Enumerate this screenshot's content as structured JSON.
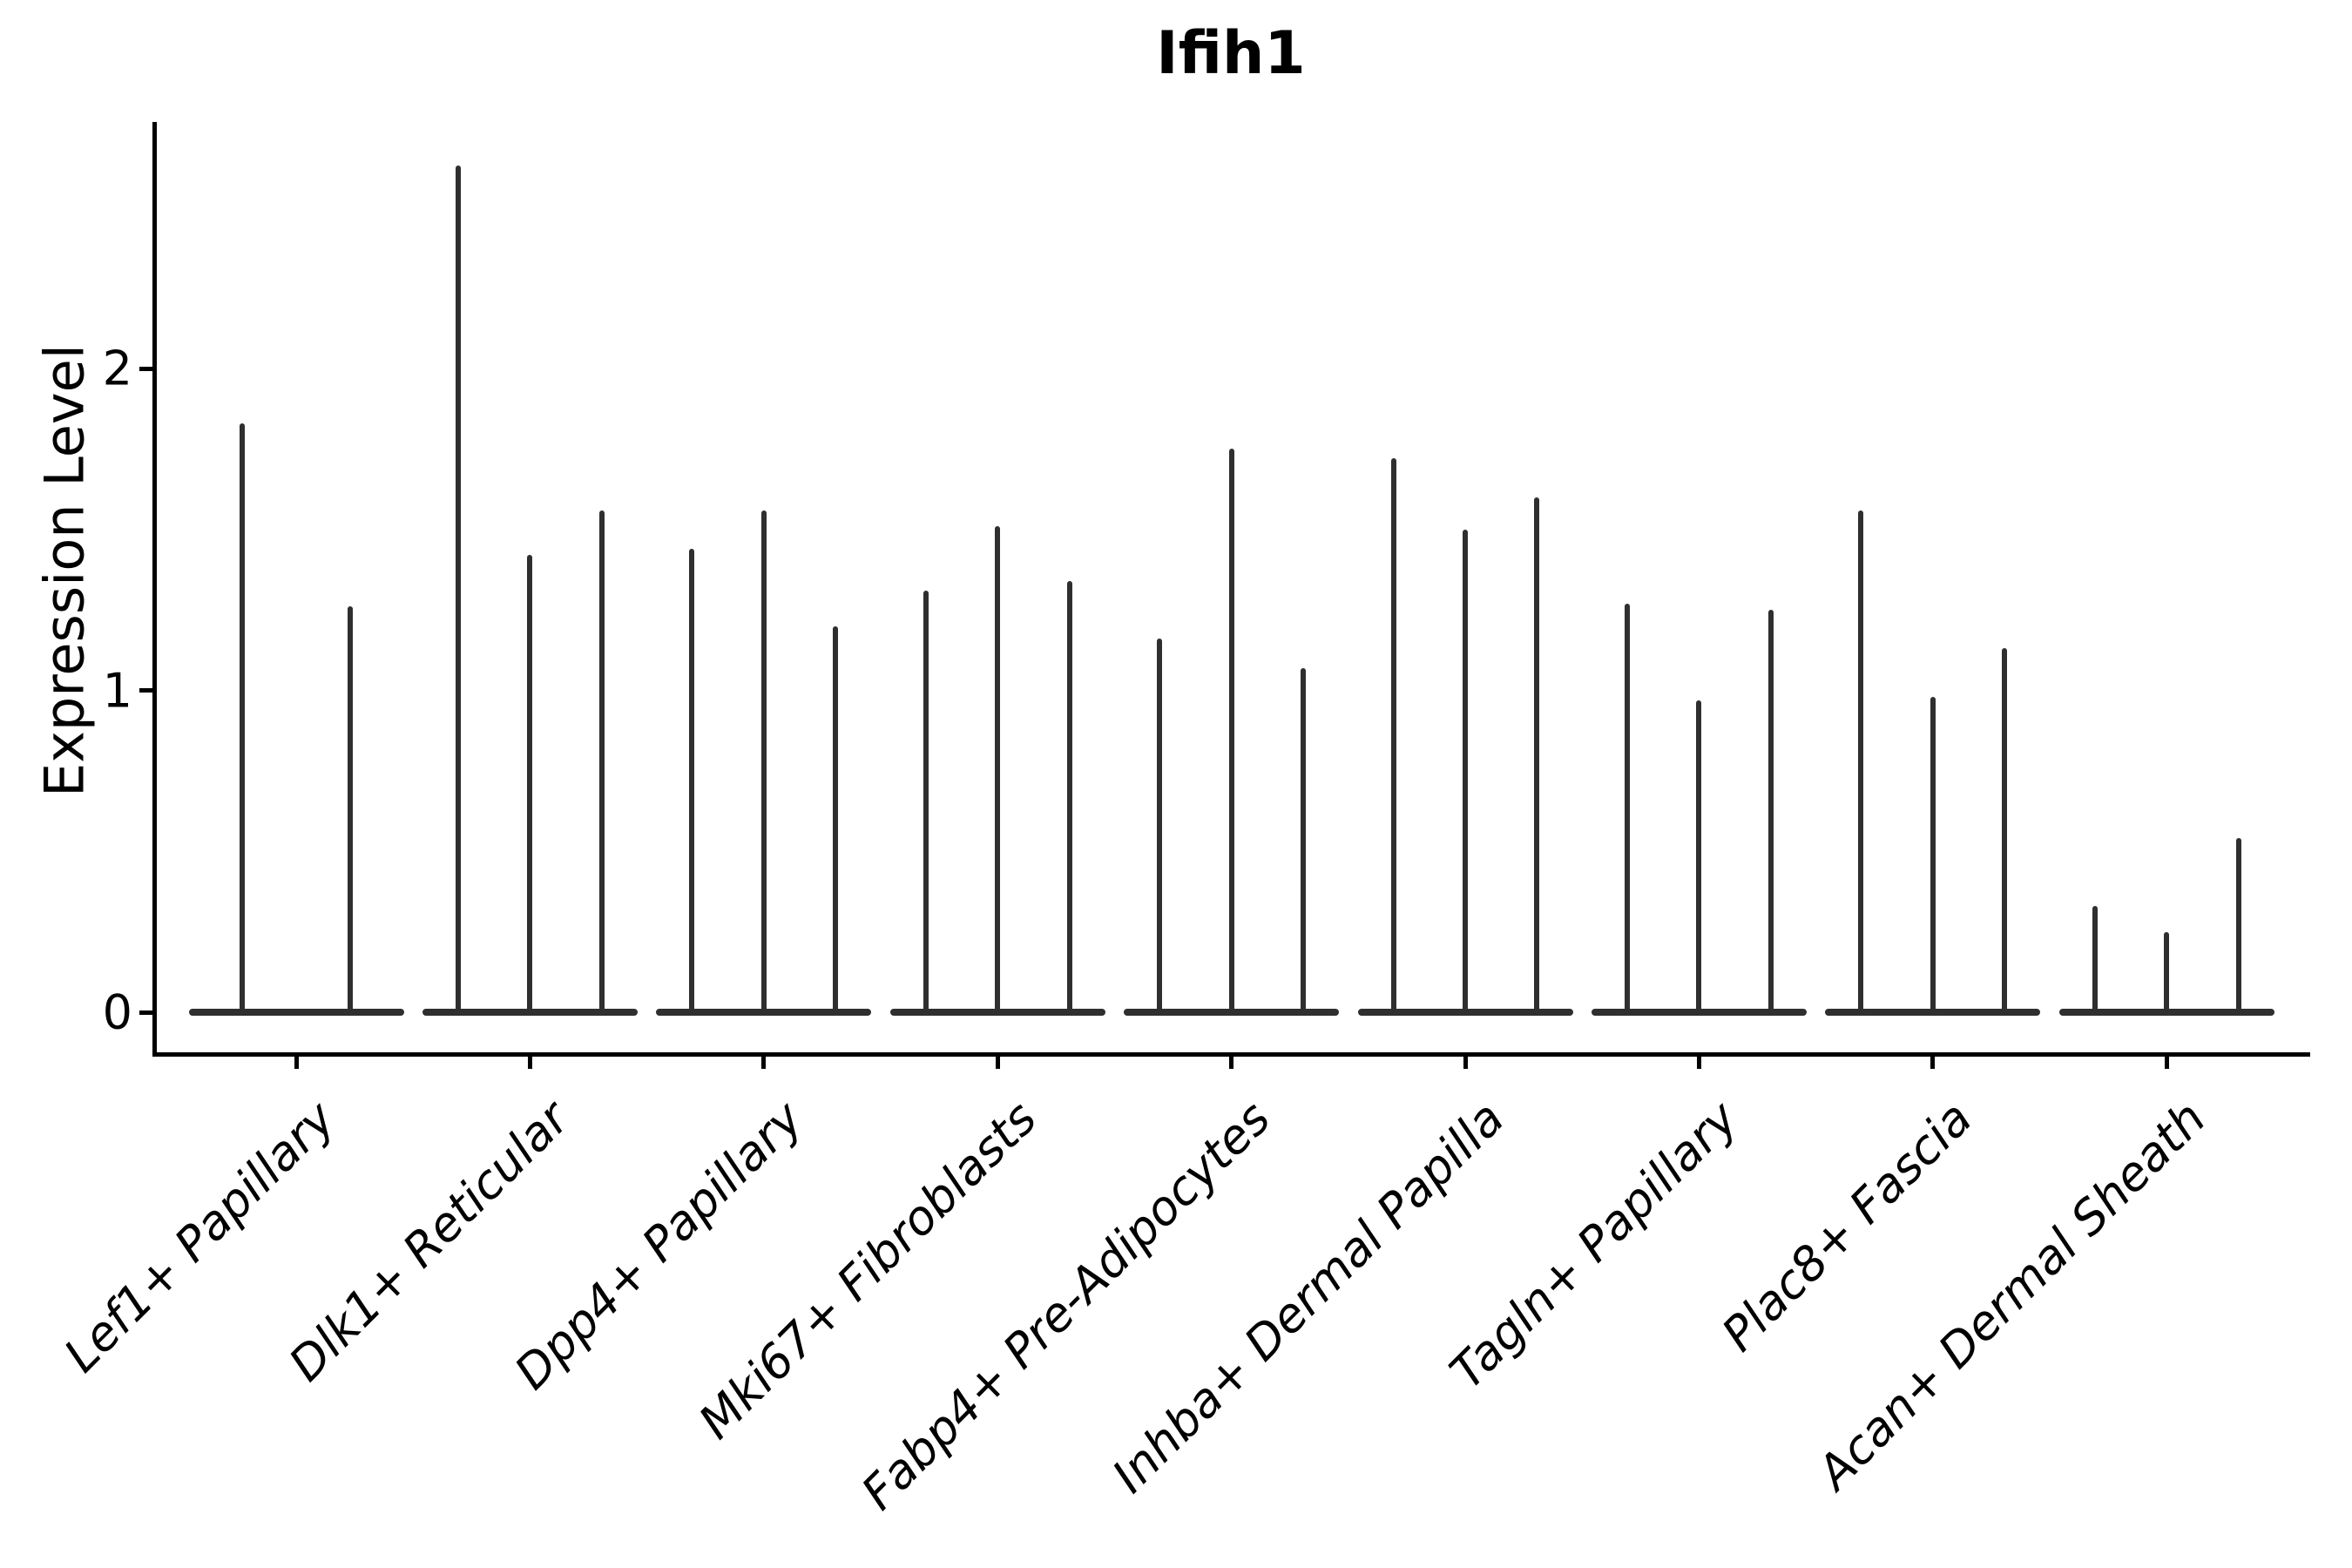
{
  "title": "Ifih1",
  "axes": {
    "ylabel": "Expression Level",
    "xlabel": ""
  },
  "colors": {
    "violin": "#2f2f2f",
    "axis": "#000000",
    "text": "#000000",
    "background": "#ffffff"
  },
  "chart_data": {
    "type": "violin",
    "title": "Ifih1",
    "xlabel": "",
    "ylabel": "Expression Level",
    "yticks": [
      0,
      1,
      2
    ],
    "ylim": [
      -0.13,
      2.9
    ],
    "grid": false,
    "legend": "none",
    "orientation": "vertical",
    "description": "Needle-shaped violins: expression mass concentrated at 0 with a thin spike reaching the maximum expression value; flat wide base at y=0 for each group.",
    "categories": [
      "Lef1+ Papillary",
      "Dlk1+ Reticular",
      "Dpp4+ Papillary",
      "Mki67+ Fibroblasts",
      "Fabp4+ Pre-Adipocytes",
      "Inhba+ Dermal Papilla",
      "Tagln+ Papillary",
      "Plac8+ Fascia",
      "Acan+ Dermal Sheath"
    ],
    "groups": [
      {
        "category": "Lef1+ Papillary",
        "violins_per_group": 2,
        "peak_expression": [
          1.83,
          1.26
        ]
      },
      {
        "category": "Dlk1+ Reticular",
        "violins_per_group": 3,
        "peak_expression": [
          2.63,
          1.42,
          1.56
        ]
      },
      {
        "category": "Dpp4+ Papillary",
        "violins_per_group": 3,
        "peak_expression": [
          1.44,
          1.56,
          1.2
        ]
      },
      {
        "category": "Mki67+ Fibroblasts",
        "violins_per_group": 3,
        "peak_expression": [
          1.31,
          1.51,
          1.34
        ]
      },
      {
        "category": "Fabp4+ Pre-Adipocytes",
        "violins_per_group": 3,
        "peak_expression": [
          1.16,
          1.75,
          1.07
        ]
      },
      {
        "category": "Inhba+ Dermal Papilla",
        "violins_per_group": 3,
        "peak_expression": [
          1.72,
          1.5,
          1.6
        ]
      },
      {
        "category": "Tagln+ Papillary",
        "violins_per_group": 3,
        "peak_expression": [
          1.27,
          0.97,
          1.25
        ]
      },
      {
        "category": "Plac8+ Fascia",
        "violins_per_group": 3,
        "peak_expression": [
          1.56,
          0.98,
          1.13
        ]
      },
      {
        "category": "Acan+ Dermal Sheath",
        "violins_per_group": 3,
        "peak_expression": [
          0.33,
          0.25,
          0.54
        ]
      }
    ]
  }
}
